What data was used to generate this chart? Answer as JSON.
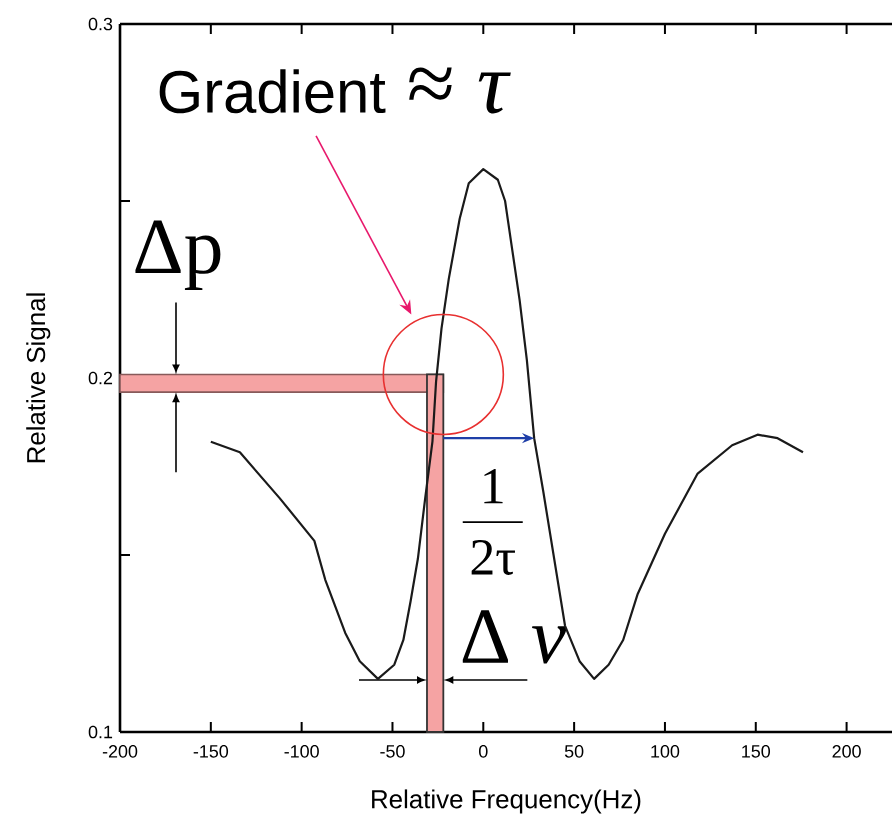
{
  "chart_data": {
    "type": "line",
    "xlabel": "Relative Frequency(Hz)",
    "ylabel": "Relative Signal",
    "x": [
      -150,
      -134,
      -112,
      -93,
      -87,
      -76,
      -68,
      -58,
      -49,
      -44,
      -40,
      -36,
      -32,
      -28,
      -26,
      -23,
      -19,
      -13,
      -8,
      0,
      8,
      12,
      16,
      20,
      24,
      28,
      33,
      39,
      45,
      53,
      61,
      69,
      77,
      85,
      100,
      118,
      137,
      151,
      162,
      176
    ],
    "values": [
      0.182,
      0.179,
      0.166,
      0.154,
      0.143,
      0.128,
      0.12,
      0.115,
      0.119,
      0.126,
      0.137,
      0.149,
      0.166,
      0.182,
      0.199,
      0.214,
      0.228,
      0.245,
      0.255,
      0.259,
      0.256,
      0.25,
      0.236,
      0.222,
      0.205,
      0.183,
      0.168,
      0.149,
      0.13,
      0.12,
      0.115,
      0.119,
      0.126,
      0.139,
      0.156,
      0.173,
      0.181,
      0.184,
      0.183,
      0.179
    ],
    "color": "#1a1a1a",
    "xlim": [
      -200,
      225
    ],
    "ylim": [
      0.1,
      0.3
    ],
    "xticks": [
      -200,
      -150,
      -100,
      -50,
      0,
      50,
      100,
      150,
      200
    ],
    "yticks": [
      0.1,
      {
        "value": 0.15,
        "label": null
      },
      0.2,
      {
        "value": 0.25,
        "label": null
      },
      0.3
    ],
    "bands": [
      {
        "axis": "y",
        "from": 0.196,
        "to": 0.201,
        "label": "Δp",
        "color": "#f5a3a3"
      },
      {
        "axis": "x",
        "from": -31,
        "to": -22,
        "label": "Δ *ν*",
        "color": "#f5a3a3"
      }
    ],
    "annotations": [
      "Gradient",
      "≈ *τ*",
      {
        "text": "1",
        "x": 28,
        "y": 0.183
      },
      "2τ"
    ]
  }
}
